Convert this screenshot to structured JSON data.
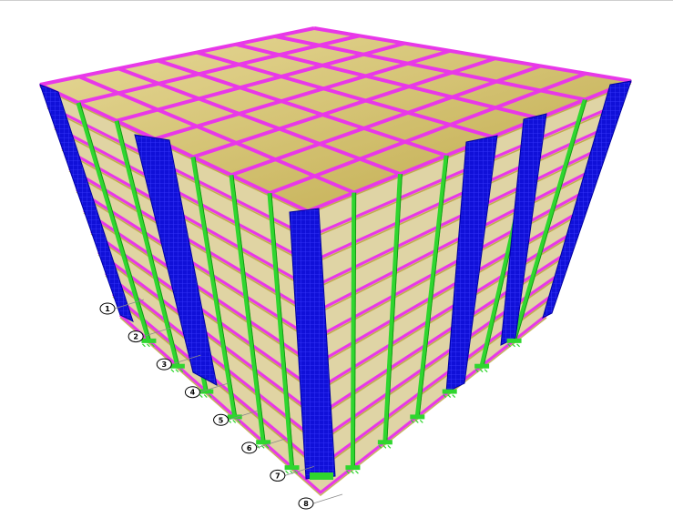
{
  "view": {
    "colors": {
      "background": "#ffffff",
      "slab_fill": "#b8a037",
      "slab_light": "#d9c77a",
      "beam": "#e838e8",
      "column": "#2fd62f",
      "shear_wall": "#1010d8",
      "shear_wall_mesh": "#3a3aff",
      "support": "#2fd62f",
      "grid_line": "#8a8a8a"
    },
    "icons": {
      "support": "fixed-support-icon",
      "grid_bubble": "grid-bubble-icon"
    },
    "grid_bubbles": [
      {
        "label": "1"
      },
      {
        "label": "2"
      },
      {
        "label": "3"
      },
      {
        "label": "4"
      },
      {
        "label": "5"
      },
      {
        "label": "6"
      },
      {
        "label": "7"
      },
      {
        "label": "8"
      }
    ]
  }
}
